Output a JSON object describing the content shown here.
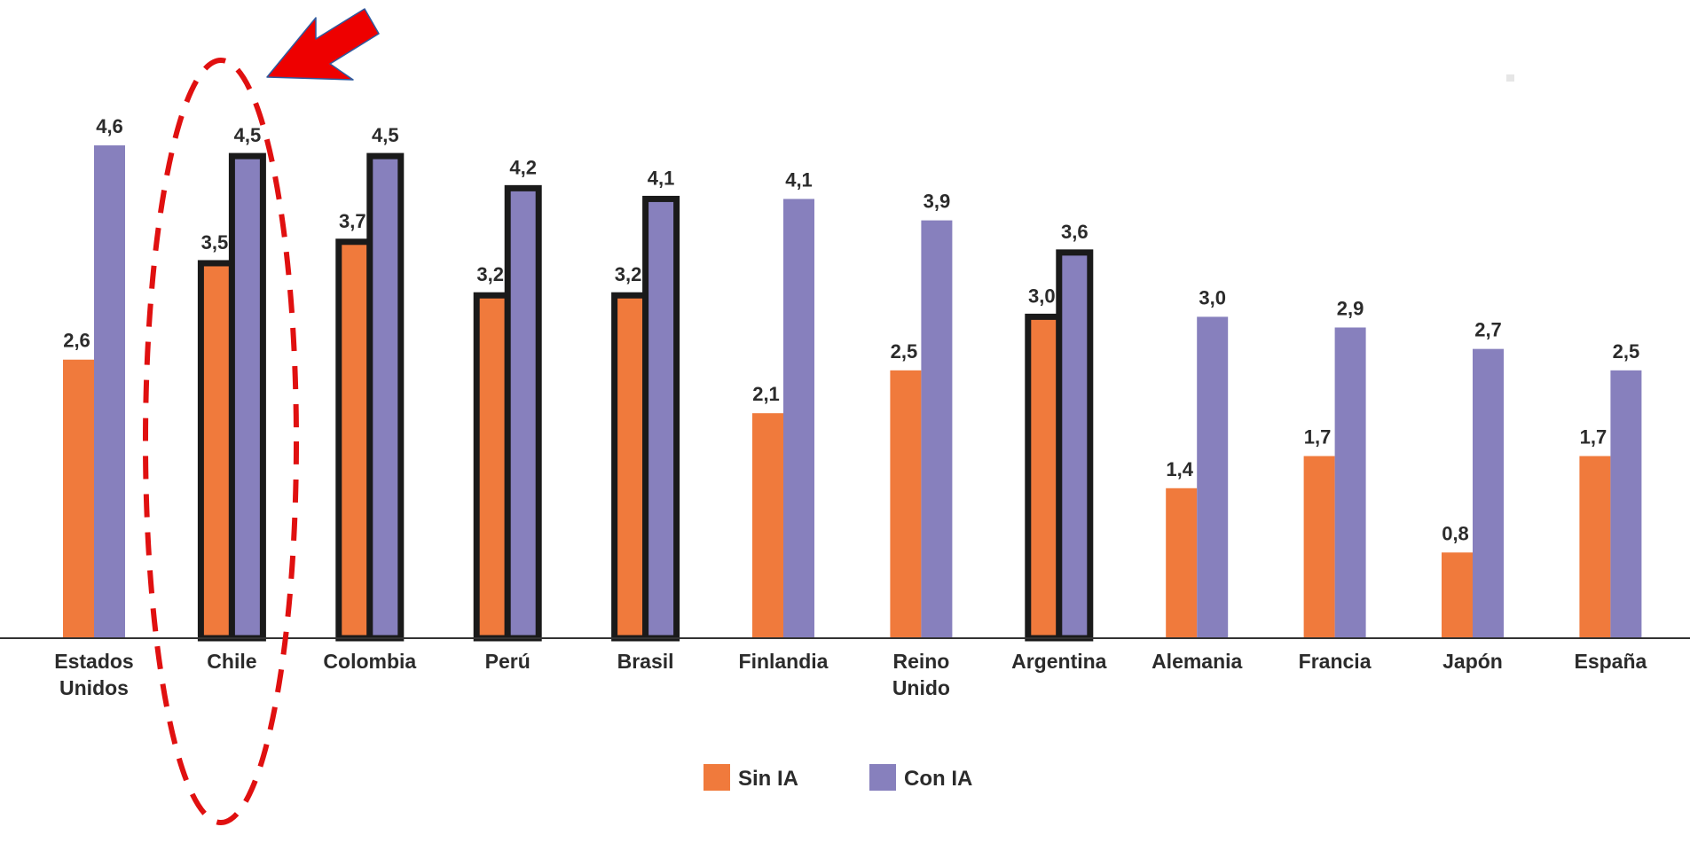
{
  "chart_data": {
    "type": "bar",
    "categories": [
      [
        "Estados",
        "Unidos"
      ],
      [
        "Chile"
      ],
      [
        "Colombia"
      ],
      [
        "Perú"
      ],
      [
        "Brasil"
      ],
      [
        "Finlandia"
      ],
      [
        "Reino",
        "Unido"
      ],
      [
        "Argentina"
      ],
      [
        "Alemania"
      ],
      [
        "Francia"
      ],
      [
        "Japón"
      ],
      [
        "España"
      ]
    ],
    "series": [
      {
        "name": "Sin IA",
        "color": "#F07A3C",
        "values": [
          2.6,
          3.5,
          3.7,
          3.2,
          3.2,
          2.1,
          2.5,
          3.0,
          1.4,
          1.7,
          0.8,
          1.7
        ],
        "labels": [
          "2,6",
          "3,5",
          "3,7",
          "3,2",
          "3,2",
          "2,1",
          "2,5",
          "3,0",
          "1,4",
          "1,7",
          "0,8",
          "1,7"
        ]
      },
      {
        "name": "Con IA",
        "color": "#8780BD",
        "values": [
          4.6,
          4.5,
          4.5,
          4.2,
          4.1,
          4.1,
          3.9,
          3.6,
          3.0,
          2.9,
          2.7,
          2.5
        ],
        "labels": [
          "4,6",
          "4,5",
          "4,5",
          "4,2",
          "4,1",
          "4,1",
          "3,9",
          "3,6",
          "3,0",
          "2,9",
          "2,7",
          "2,5"
        ]
      }
    ],
    "highlighted_categories": [
      "Chile",
      "Colombia",
      "Perú",
      "Brasil",
      "Argentina"
    ],
    "emphasized_category": "Chile",
    "legend_position": "bottom-center",
    "grid": false,
    "ylim": [
      0,
      5
    ],
    "title": "",
    "xlabel": "",
    "ylabel": ""
  },
  "annotations": {
    "arrow_color": "#EE0000",
    "ellipse_color": "#E01010"
  }
}
